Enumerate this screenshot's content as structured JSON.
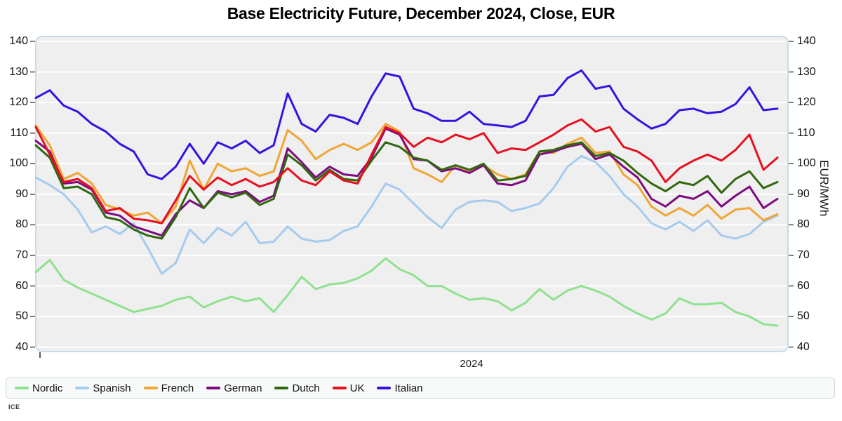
{
  "title": "Base Electricity Future, December 2024, Close, EUR",
  "source": "ICE",
  "chart_data": {
    "type": "line",
    "title": "Base Electricity Future, December 2024, Close, EUR",
    "xlabel": "2024",
    "ylabel_right": "EUR/MWh",
    "ylim": [
      40,
      140
    ],
    "yticks": [
      140,
      130,
      120,
      110,
      100,
      90,
      80,
      70,
      60,
      50,
      40
    ],
    "yticks_both_sides": true,
    "grid": true,
    "grid_color": "#ffffff",
    "plot_background": "#efefef",
    "plot_border_color": "#c7dce8",
    "legend_position": "bottom",
    "x_range_note": "Jan 2024 to Dec 2024, sampled points left to right",
    "series": [
      {
        "name": "Nordic",
        "color": "#90e190",
        "values": [
          64.5,
          68.5,
          62,
          59.5,
          57.5,
          55.5,
          53.5,
          51.5,
          52.5,
          53.5,
          55.5,
          56.5,
          53,
          55,
          56.5,
          55,
          56,
          51.5,
          57,
          63,
          59,
          60.5,
          61,
          62.5,
          65,
          69,
          65.5,
          63.5,
          60,
          60,
          57.5,
          55.5,
          56,
          55,
          52,
          54.5,
          59,
          55.5,
          58.5,
          60,
          58.5,
          56.5,
          53.5,
          51,
          49,
          51,
          56,
          54,
          54,
          54.5,
          51.5,
          50,
          47.5,
          47
        ]
      },
      {
        "name": "Spanish",
        "color": "#a6cbee",
        "values": [
          95.5,
          93,
          90,
          85,
          77.5,
          79.5,
          77,
          80.5,
          72.5,
          64,
          67.5,
          78.5,
          74,
          79,
          76.5,
          81,
          74,
          74.5,
          79.5,
          75.5,
          74.5,
          75,
          78,
          79.5,
          86,
          93.5,
          91.5,
          87,
          82.5,
          79,
          85,
          87.5,
          88,
          87.5,
          84.5,
          85.5,
          87,
          92,
          99,
          102.5,
          100.5,
          96,
          90,
          86,
          80.5,
          78.5,
          81,
          78,
          81.5,
          76.5,
          75.5,
          77,
          81,
          83
        ]
      },
      {
        "name": "French",
        "color": "#efa636",
        "values": [
          112.5,
          106,
          95,
          97,
          93.5,
          86.5,
          85,
          83,
          84,
          80.5,
          86,
          101,
          91.5,
          100,
          97.5,
          98.5,
          96,
          97.5,
          111,
          107.5,
          101.5,
          104.5,
          106.5,
          104.5,
          107,
          113,
          110.5,
          98.5,
          96.5,
          94,
          99.5,
          97.5,
          99.5,
          96.5,
          95,
          96.5,
          104,
          103.5,
          106.5,
          108.5,
          103.5,
          104,
          96.5,
          93,
          86,
          83,
          85.5,
          83,
          86.5,
          82,
          85,
          85.5,
          81.5,
          83.5
        ]
      },
      {
        "name": "German",
        "color": "#7d0c80",
        "values": [
          107.5,
          104,
          93.5,
          94,
          91.5,
          84,
          83,
          79.5,
          78,
          76.5,
          83.5,
          88,
          85.5,
          91,
          90,
          91,
          87.5,
          89.5,
          105,
          100.5,
          95.5,
          99,
          96.5,
          96,
          102,
          111.5,
          109.5,
          101.5,
          101,
          97.5,
          98.5,
          97,
          99.5,
          93.5,
          93,
          94.5,
          103,
          104,
          105.5,
          106.5,
          101.5,
          103,
          99,
          95.5,
          88.5,
          86,
          89.5,
          88.5,
          91,
          86,
          89.5,
          92.5,
          85.5,
          88.5
        ]
      },
      {
        "name": "Dutch",
        "color": "#30680f",
        "values": [
          106,
          102,
          92,
          92.5,
          90,
          82.5,
          81.5,
          78.5,
          76.5,
          75.5,
          82.5,
          92,
          85.5,
          90.5,
          89,
          90.5,
          86.5,
          88.5,
          103,
          99.5,
          94.5,
          98,
          95,
          94.5,
          101,
          107,
          105.5,
          102,
          101,
          98,
          99.5,
          98,
          100,
          94.5,
          95,
          96,
          104,
          104.5,
          106,
          107,
          102.5,
          103.5,
          101,
          97,
          93.5,
          91,
          94,
          93,
          96,
          90.5,
          95,
          97.5,
          92,
          94
        ]
      },
      {
        "name": "UK",
        "color": "#e6101f",
        "values": [
          112,
          103,
          94,
          95,
          92,
          84.5,
          85.5,
          82,
          81.5,
          80.5,
          88,
          96,
          91.5,
          95.5,
          93,
          95,
          92.5,
          94,
          98.5,
          94.5,
          93,
          97.5,
          94.5,
          93.5,
          103,
          112,
          110,
          105.5,
          108.5,
          107,
          109.5,
          108,
          110,
          103.5,
          105,
          104.5,
          107,
          109.5,
          112.5,
          114.5,
          110.5,
          112,
          105.5,
          104,
          101,
          94,
          98.5,
          101,
          103,
          101,
          104.5,
          109.5,
          98,
          102
        ]
      },
      {
        "name": "Italian",
        "color": "#3812e0",
        "values": [
          121.5,
          124,
          119,
          117,
          113,
          110.5,
          106.5,
          104,
          96.5,
          95,
          99,
          106.5,
          100,
          107,
          105,
          107.5,
          103.5,
          106,
          123,
          113,
          110.5,
          116,
          115,
          113,
          122,
          129.5,
          128.5,
          118,
          116.5,
          114,
          114,
          117,
          113,
          112.5,
          112,
          114,
          122,
          122.5,
          128,
          130.5,
          124.5,
          125.5,
          118,
          114.5,
          111.5,
          113,
          117.5,
          118,
          116.5,
          117,
          119.5,
          125,
          117.5,
          118
        ]
      }
    ]
  }
}
